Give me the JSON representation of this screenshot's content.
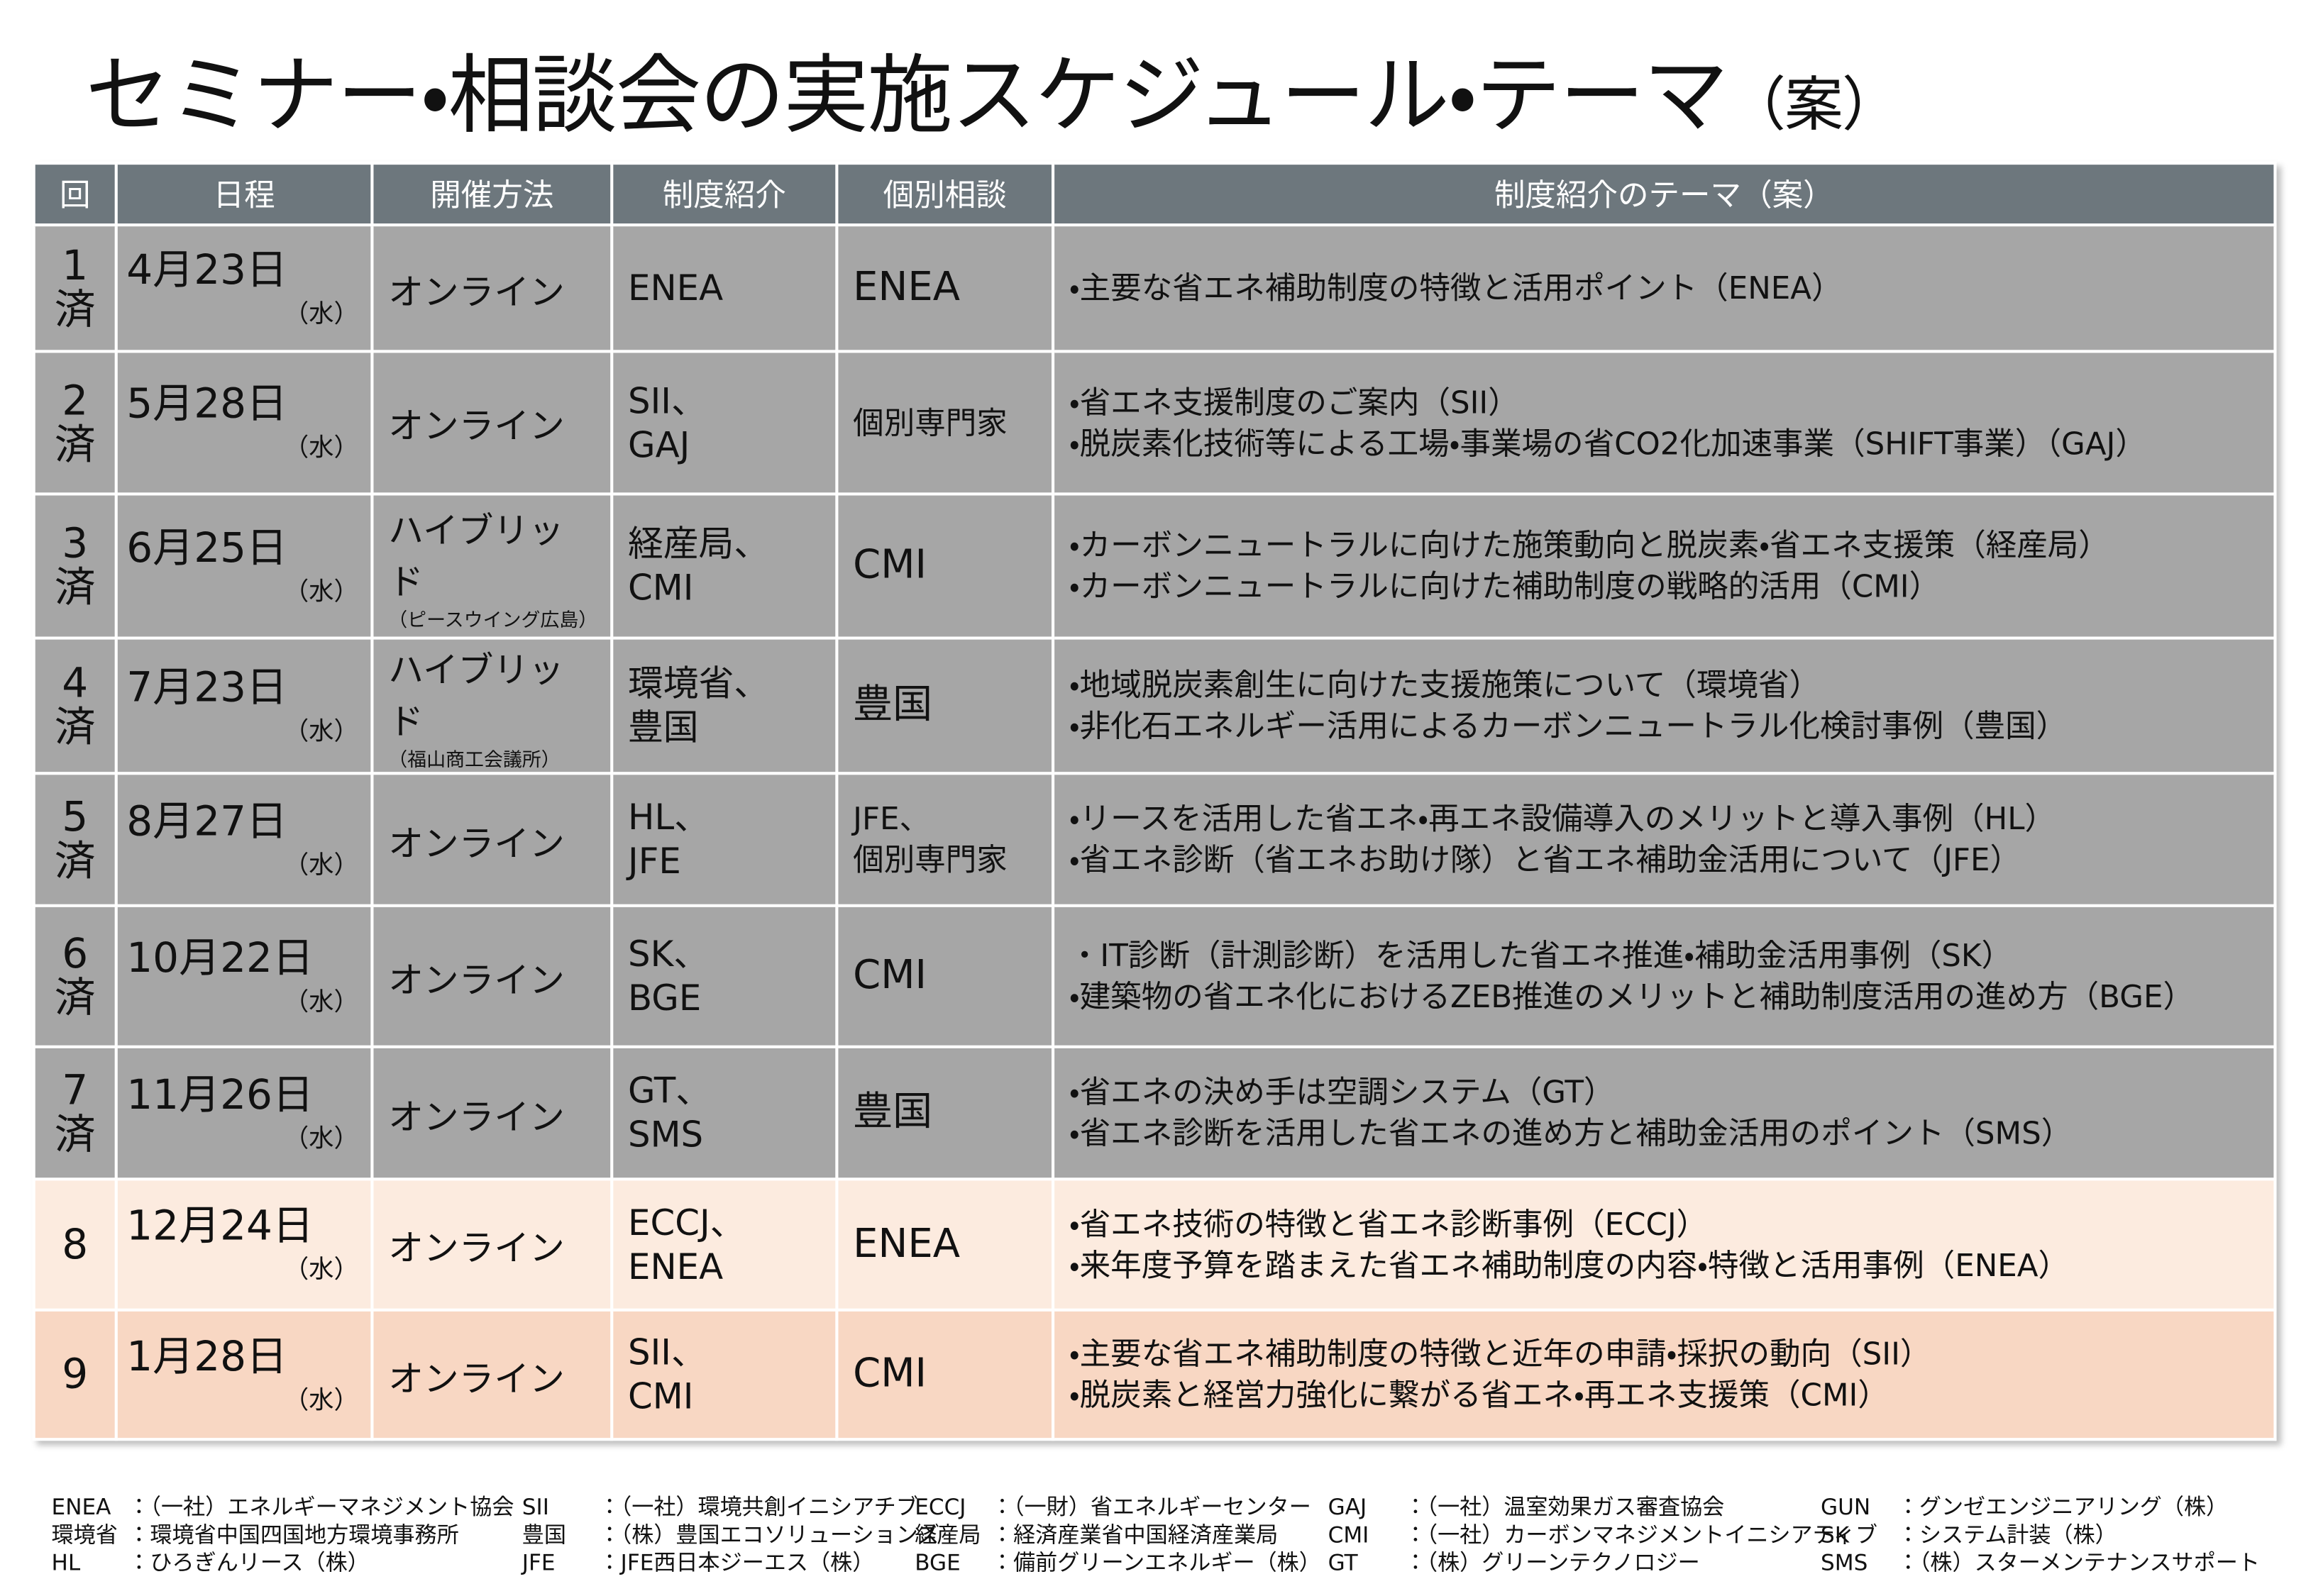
{
  "title": "セミナー・相談会の実施スケジュール・テーマ",
  "title_suffix": "（案）",
  "table": {
    "headers": [
      "回",
      "日程",
      "開催方法",
      "制度紹介",
      "個別相談",
      "制度紹介のテーマ（案）"
    ],
    "rows": [
      {
        "num": "1",
        "status": "済",
        "date": "4月23日",
        "weekday": "（水）",
        "method": "オンライン",
        "method_note": null,
        "intro": [
          "ENEA"
        ],
        "consult": [
          "ENEA"
        ],
        "themes": [
          "・主要な省エネ補助制度の特徴と活用ポイント（ENEA）"
        ]
      },
      {
        "num": "2",
        "status": "済",
        "date": "5月28日",
        "weekday": "（水）",
        "method": "オンライン",
        "method_note": null,
        "intro": [
          "SII、",
          "GAJ"
        ],
        "consult": [
          "個別専門家"
        ],
        "themes": [
          "・省エネ支援制度のご案内（SII）",
          "・脱炭素化技術等による工場・事業場の省CO2化加速事業（SHIFT事業）（GAJ）"
        ]
      },
      {
        "num": "3",
        "status": "済",
        "date": "6月25日",
        "weekday": "（水）",
        "method": "ハイブリッド",
        "method_note": "（ピースウイング広島）",
        "intro": [
          "経産局、",
          "CMI"
        ],
        "consult": [
          "CMI"
        ],
        "themes": [
          "・カーボンニュートラルに向けた施策動向と脱炭素・省エネ支援策（経産局）",
          "・カーボンニュートラルに向けた補助制度の戦略的活用（CMI）"
        ]
      },
      {
        "num": "4",
        "status": "済",
        "date": "7月23日",
        "weekday": "（水）",
        "method": "ハイブリッド",
        "method_note": "（福山商工会議所）",
        "intro": [
          "環境省、",
          "豊国"
        ],
        "consult": [
          "豊国"
        ],
        "themes": [
          "・地域脱炭素創生に向けた支援施策について（環境省）",
          "・非化石エネルギー活用によるカーボンニュートラル化検討事例（豊国）"
        ]
      },
      {
        "num": "5",
        "status": "済",
        "date": "8月27日",
        "weekday": "（水）",
        "method": "オンライン",
        "method_note": null,
        "intro": [
          "HL、",
          "JFE"
        ],
        "consult": [
          "JFE、",
          "個別専門家"
        ],
        "themes": [
          "・リースを活用した省エネ・再エネ設備導入のメリットと導入事例（HL）",
          "・省エネ診断（省エネお助け隊）と省エネ補助金活用について（JFE）"
        ]
      },
      {
        "num": "6",
        "status": "済",
        "date": "10月22日",
        "weekday": "（水）",
        "method": "オンライン",
        "method_note": null,
        "intro": [
          "SK、",
          "BGE"
        ],
        "consult": [
          "CMI"
        ],
        "themes": [
          "・IT診断（計測診断）を活用した省エネ推進・補助金活用事例（SK）",
          "・建築物の省エネ化におけるZEB推進のメリットと補助制度活用の進め方（BGE）"
        ]
      },
      {
        "num": "7",
        "status": "済",
        "date": "11月26日",
        "weekday": "（水）",
        "method": "オンライン",
        "method_note": null,
        "intro": [
          "GT、",
          "SMS"
        ],
        "consult": [
          "豊国"
        ],
        "themes": [
          "・省エネの決め手は空調システム（GT）",
          "・省エネ診断を活用した省エネの進め方と補助金活用のポイント（SMS）"
        ]
      },
      {
        "num": "8",
        "status": null,
        "date": "12月24日",
        "weekday": "（水）",
        "method": "オンライン",
        "method_note": null,
        "intro": [
          "ECCJ、",
          "ENEA"
        ],
        "consult": [
          "ENEA"
        ],
        "themes": [
          "・省エネ技術の特徴と省エネ診断事例（ECCJ）",
          "・来年度予算を踏まえた省エネ補助制度の内容・特徴と活用事例（ENEA）"
        ]
      },
      {
        "num": "9",
        "status": null,
        "date": "1月28日",
        "weekday": "（水）",
        "method": "オンライン",
        "method_note": null,
        "intro": [
          "SII、",
          "CMI"
        ],
        "consult": [
          "CMI"
        ],
        "themes": [
          "・主要な省エネ補助制度の特徴と近年の申請・採択の動向（SII）",
          "・脱炭素と経営力強化に繋がる省エネ・再エネ支援策（CMI）"
        ]
      }
    ]
  },
  "footnotes": [
    {
      "abbr": "ENEA",
      "desc": "：（一社）エネルギーマネジメント協会"
    },
    {
      "abbr": "環境省",
      "desc": "：環境省中国四国地方環境事務所"
    },
    {
      "abbr": "HL",
      "desc": "：ひろぎんリース（株）"
    },
    {
      "abbr": "SII",
      "desc": "：（一社）環境共創イニシアチブ"
    },
    {
      "abbr": "豊国",
      "desc": "：（株）豊国エコソリューションズ"
    },
    {
      "abbr": "JFE",
      "desc": "：JFE西日本ジーエス（株）"
    },
    {
      "abbr": "ECCJ",
      "desc": "：（一財）省エネルギーセンター"
    },
    {
      "abbr": "経産局",
      "desc": "：経済産業省中国経済産業局"
    },
    {
      "abbr": "BGE",
      "desc": "：備前グリーンエネルギー（株）"
    },
    {
      "abbr": "GAJ",
      "desc": "：（一社）温室効果ガス審査協会"
    },
    {
      "abbr": "CMI",
      "desc": "：（一社）カーボンマネジメントイニシアティブ"
    },
    {
      "abbr": "GT",
      "desc": "：（株）グリーンテクノロジー"
    },
    {
      "abbr": "GUN",
      "desc": "：グンゼエンジニアリング（株）"
    },
    {
      "abbr": "SK",
      "desc": "：システム計装（株）"
    },
    {
      "abbr": "SMS",
      "desc": "：（株）スターメンテナンスサポート"
    }
  ]
}
